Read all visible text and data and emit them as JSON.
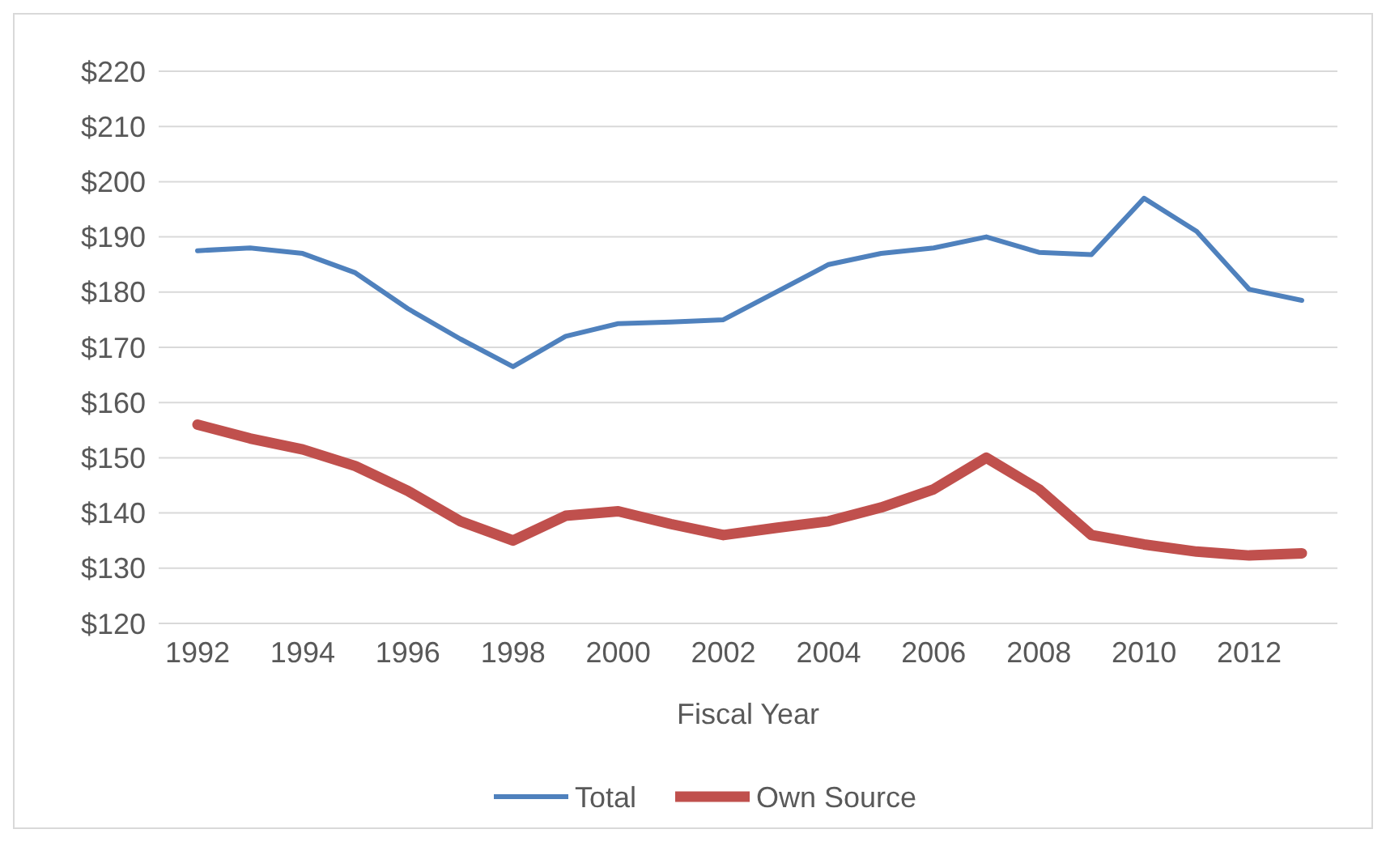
{
  "chart_data": {
    "type": "line",
    "xlabel": "Fiscal Year",
    "categories": [
      "1992",
      null,
      "1994",
      null,
      "1996",
      null,
      "1998",
      null,
      "2000",
      null,
      "2002",
      null,
      "2004",
      null,
      "2006",
      null,
      "2008",
      null,
      "2010",
      null,
      "2012",
      null
    ],
    "series": [
      {
        "name": "Total",
        "color": "#4f81bd",
        "values": [
          187.5,
          188,
          187,
          183.5,
          177,
          171.5,
          166.5,
          172,
          174.3,
          174.6,
          175,
          180,
          185,
          187,
          188,
          190,
          187.2,
          186.8,
          197,
          191,
          180.5,
          178.5
        ]
      },
      {
        "name": "Own Source",
        "color": "#c0504d",
        "values": [
          156,
          153.5,
          151.5,
          148.5,
          144,
          138.5,
          135,
          139.5,
          140.3,
          138,
          136,
          137.3,
          138.5,
          141,
          144.3,
          150,
          144.3,
          136,
          134.3,
          133,
          132.3,
          132.7
        ]
      }
    ],
    "ylim": [
      120,
      220
    ],
    "yticks": [
      {
        "value": 120,
        "label": "$120"
      },
      {
        "value": 130,
        "label": "$130"
      },
      {
        "value": 140,
        "label": "$140"
      },
      {
        "value": 150,
        "label": "$150"
      },
      {
        "value": 160,
        "label": "$160"
      },
      {
        "value": 170,
        "label": "$170"
      },
      {
        "value": 180,
        "label": "$180"
      },
      {
        "value": 190,
        "label": "$190"
      },
      {
        "value": 200,
        "label": "$200"
      },
      {
        "value": 210,
        "label": "$210"
      },
      {
        "value": 220,
        "label": "$220"
      }
    ],
    "grid": "y",
    "legend": "bottom",
    "marker": "none",
    "line_style": "solid"
  }
}
